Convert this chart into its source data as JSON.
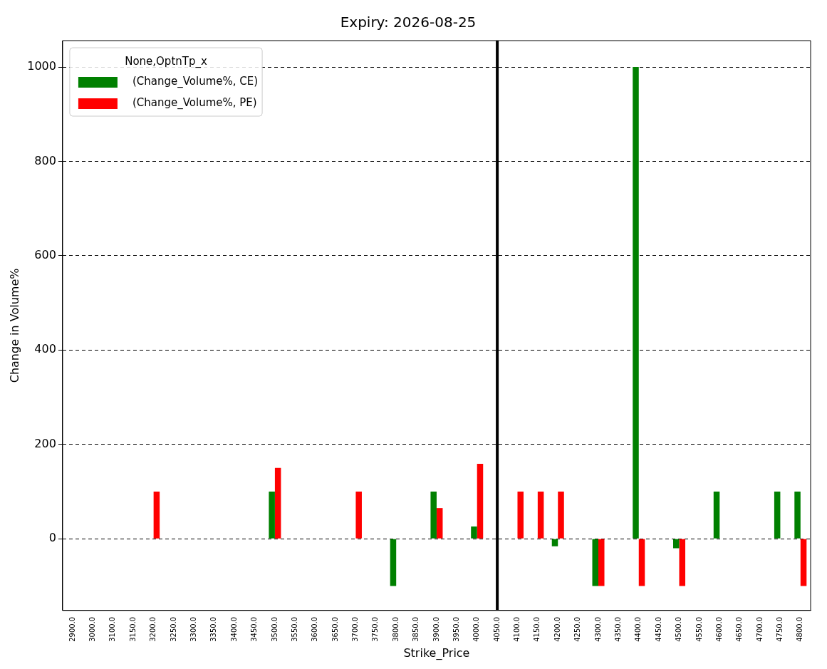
{
  "chart_data": {
    "type": "bar",
    "title": "Expiry: 2026-08-25",
    "xlabel": "Strike_Price",
    "ylabel": "Change in Volume%",
    "legend_title": "None,OptnTp_x",
    "categories": [
      "2900.0",
      "3000.0",
      "3100.0",
      "3150.0",
      "3200.0",
      "3250.0",
      "3300.0",
      "3350.0",
      "3400.0",
      "3450.0",
      "3500.0",
      "3550.0",
      "3600.0",
      "3650.0",
      "3700.0",
      "3750.0",
      "3800.0",
      "3850.0",
      "3900.0",
      "3950.0",
      "4000.0",
      "4050.0",
      "4100.0",
      "4150.0",
      "4200.0",
      "4250.0",
      "4300.0",
      "4350.0",
      "4400.0",
      "4450.0",
      "4500.0",
      "4550.0",
      "4600.0",
      "4650.0",
      "4700.0",
      "4750.0",
      "4800.0"
    ],
    "series": [
      {
        "name": "(Change_Volume%, CE)",
        "color": "#008000",
        "values": [
          null,
          null,
          null,
          null,
          null,
          null,
          null,
          null,
          null,
          null,
          100,
          null,
          null,
          null,
          null,
          null,
          -100,
          null,
          100,
          null,
          26,
          null,
          null,
          null,
          -16,
          null,
          -100,
          null,
          1000,
          null,
          -20,
          null,
          100,
          null,
          null,
          100,
          100
        ]
      },
      {
        "name": "(Change_Volume%, PE)",
        "color": "#ff0000",
        "values": [
          null,
          null,
          null,
          null,
          100,
          null,
          null,
          null,
          null,
          null,
          150,
          null,
          null,
          null,
          100,
          null,
          null,
          null,
          65,
          null,
          159,
          null,
          100,
          100,
          100,
          null,
          -100,
          null,
          -100,
          null,
          -100,
          null,
          null,
          null,
          null,
          null,
          -100
        ]
      }
    ],
    "ylim": [
      -152,
      1056
    ],
    "yticks": [
      0,
      200,
      400,
      600,
      800,
      1000
    ],
    "grid": "y",
    "legend": "top left",
    "ref_lines": [
      {
        "axis": "x",
        "value": "4050.0",
        "color": "#000000"
      }
    ]
  }
}
